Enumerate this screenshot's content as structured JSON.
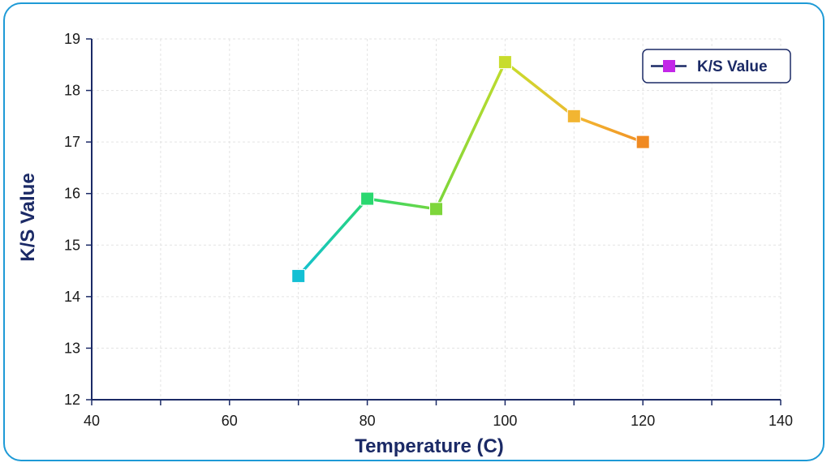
{
  "chart_data": {
    "type": "line",
    "title": "",
    "xlabel": "Temperature (C)",
    "ylabel": "K/S Value",
    "xlim": [
      40,
      140
    ],
    "ylim": [
      12,
      19
    ],
    "xticks": [
      40,
      60,
      80,
      100,
      120,
      140
    ],
    "yticks": [
      12,
      13,
      14,
      15,
      16,
      17,
      18,
      19
    ],
    "grid": true,
    "legend_position": "top-right",
    "series": [
      {
        "name": "K/S Value",
        "legend_color": "#c327e8",
        "x": [
          70,
          80,
          90,
          100,
          110,
          120
        ],
        "y": [
          14.4,
          15.9,
          15.7,
          18.55,
          17.5,
          17.0
        ],
        "colors": [
          "#13c0d4",
          "#2ad870",
          "#7dd63a",
          "#c8dc2c",
          "#f2b531",
          "#f08a22"
        ]
      }
    ]
  },
  "colors": {
    "frame_border": "#1e9ad6",
    "axis": "#1b2a66",
    "grid": "#e3e3e3"
  }
}
